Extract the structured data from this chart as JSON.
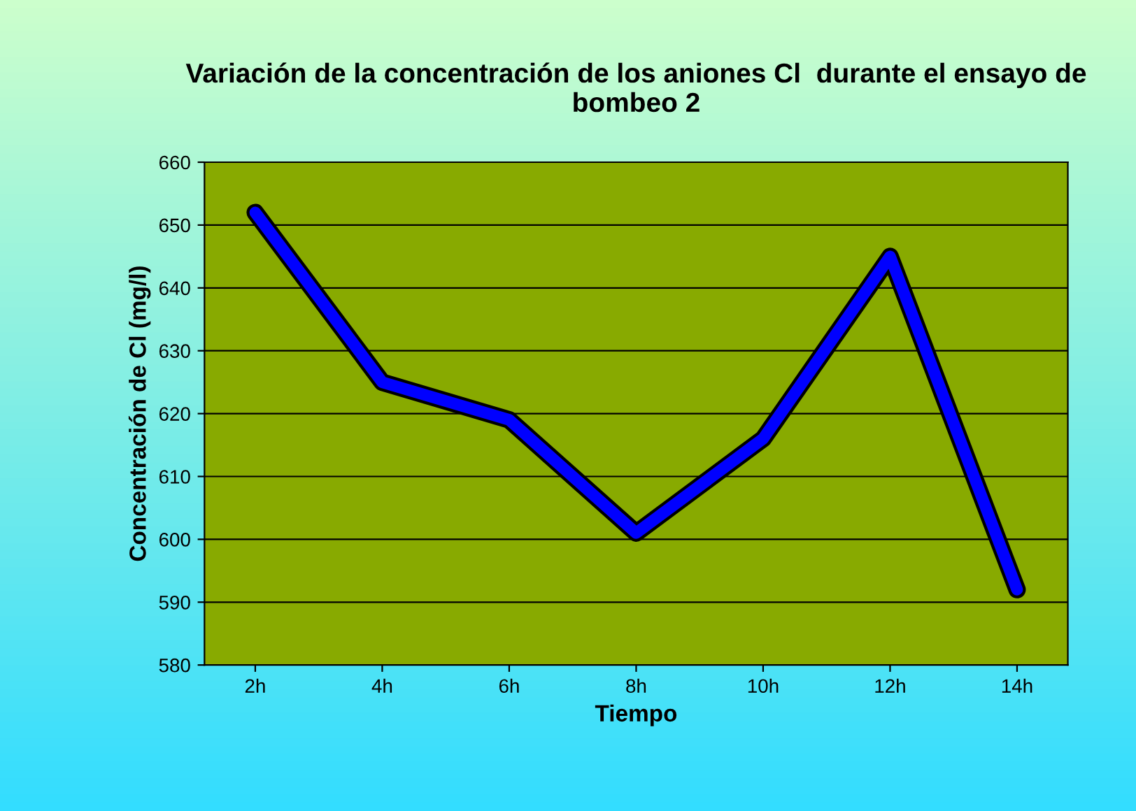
{
  "chart_data": {
    "type": "line",
    "title": "Variación de la concentración de los aniones Cl  durante el ensayo de bombeo 2",
    "xlabel": "Tiempo",
    "ylabel": "Concentración de Cl (mg/l)",
    "categories": [
      "2h",
      "4h",
      "6h",
      "8h",
      "10h",
      "12h",
      "14h"
    ],
    "series": [
      {
        "color": "#0000ff",
        "values": [
          652,
          625,
          619,
          601,
          616,
          645,
          592
        ]
      }
    ],
    "ylim": [
      580,
      660
    ],
    "yticks": [
      580,
      590,
      600,
      610,
      620,
      630,
      640,
      650,
      660
    ],
    "grid": "y",
    "legend": false,
    "marker": "none",
    "line_style": "solid"
  }
}
